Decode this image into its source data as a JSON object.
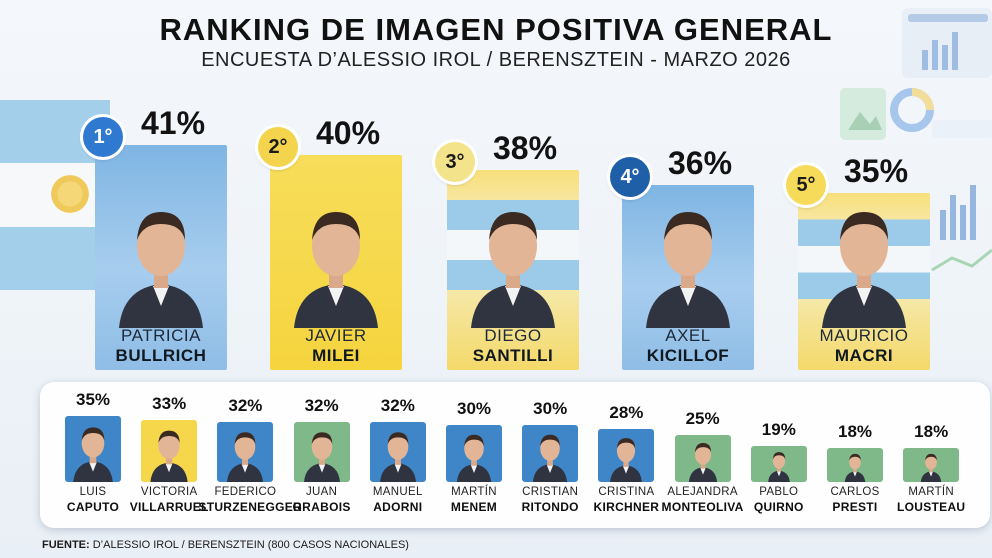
{
  "title": "RANKING DE IMAGEN POSITIVA GENERAL",
  "subtitle": "ENCUESTA D’ALESSIO IROL / BERENSZTEIN - MARZO 2026",
  "footer": {
    "label": "FUENTE:",
    "text": "D’ALESSIO IROL / BERENSZTEIN (800 CASOS NACIONALES)"
  },
  "colors": {
    "blue": "#3f86c9",
    "yellow": "#f6d64a",
    "light_blue": "#9ccbea",
    "green": "#7fb889",
    "rank_dark_blue": "#1f5fa8"
  },
  "top5": [
    {
      "rank": "1°",
      "pct": "41%",
      "first": "PATRICIA",
      "last": "BULLRICH",
      "card": "blue"
    },
    {
      "rank": "2°",
      "pct": "40%",
      "first": "JAVIER",
      "last": "MILEI",
      "card": "yellow"
    },
    {
      "rank": "3°",
      "pct": "38%",
      "first": "DIEGO",
      "last": "SANTILLI",
      "card": "flag"
    },
    {
      "rank": "4°",
      "pct": "36%",
      "first": "AXEL",
      "last": "KICILLOF",
      "card": "blue"
    },
    {
      "rank": "5°",
      "pct": "35%",
      "first": "MAURICIO",
      "last": "MACRI",
      "card": "flag"
    }
  ],
  "others": [
    {
      "pct": "35%",
      "first": "LUIS",
      "last": "CAPUTO",
      "bg": "blue"
    },
    {
      "pct": "33%",
      "first": "VICTORIA",
      "last": "VILLARRUEL",
      "bg": "yellow"
    },
    {
      "pct": "32%",
      "first": "FEDERICO",
      "last": "STURZENEGGER",
      "bg": "blue"
    },
    {
      "pct": "32%",
      "first": "JUAN",
      "last": "GRABOIS",
      "bg": "green"
    },
    {
      "pct": "32%",
      "first": "MANUEL",
      "last": "ADORNI",
      "bg": "blue"
    },
    {
      "pct": "30%",
      "first": "MARTÍN",
      "last": "MENEM",
      "bg": "blue"
    },
    {
      "pct": "30%",
      "first": "CRISTIAN",
      "last": "RITONDO",
      "bg": "blue"
    },
    {
      "pct": "28%",
      "first": "CRISTINA",
      "last": "KIRCHNER",
      "bg": "blue"
    },
    {
      "pct": "25%",
      "first": "ALEJANDRA",
      "last": "MONTEOLIVA",
      "bg": "green"
    },
    {
      "pct": "19%",
      "first": "PABLO",
      "last": "QUIRNO",
      "bg": "green"
    },
    {
      "pct": "18%",
      "first": "CARLOS",
      "last": "PRESTI",
      "bg": "green"
    },
    {
      "pct": "18%",
      "first": "MARTÍN",
      "last": "LOUSTEAU",
      "bg": "green"
    }
  ],
  "chart_data": {
    "type": "bar",
    "title": "RANKING DE IMAGEN POSITIVA GENERAL",
    "subtitle": "ENCUESTA D’ALESSIO IROL / BERENSZTEIN - MARZO 2026",
    "categories": [
      "PATRICIA BULLRICH",
      "JAVIER MILEI",
      "DIEGO SANTILLI",
      "AXEL KICILLOF",
      "MAURICIO MACRI",
      "LUIS CAPUTO",
      "VICTORIA VILLARRUEL",
      "FEDERICO STURZENEGGER",
      "JUAN GRABOIS",
      "MANUEL ADORNI",
      "MARTÍN MENEM",
      "CRISTIAN RITONDO",
      "CRISTINA KIRCHNER",
      "ALEJANDRA MONTEOLIVA",
      "PABLO QUIRNO",
      "CARLOS PRESTI",
      "MARTÍN LOUSTEAU"
    ],
    "values": [
      41,
      40,
      38,
      36,
      35,
      35,
      33,
      32,
      32,
      32,
      30,
      30,
      28,
      25,
      19,
      18,
      18
    ],
    "unit": "%"
  }
}
